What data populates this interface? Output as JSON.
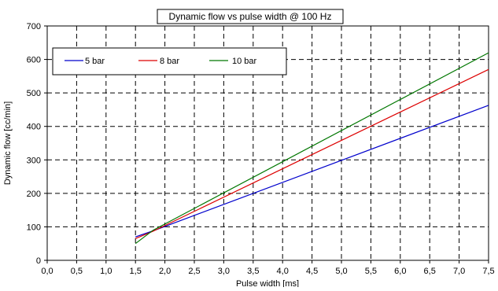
{
  "chart_data": {
    "type": "line",
    "title": "Dynamic flow vs pulse width @ 100 Hz",
    "xlabel": "Pulse width [ms]",
    "ylabel": "Dynamic flow [cc/min]",
    "xlim": [
      0,
      7.5
    ],
    "ylim": [
      0,
      700
    ],
    "xticks": [
      "0,0",
      "0,5",
      "1,0",
      "1,5",
      "2,0",
      "2,5",
      "3,0",
      "3,5",
      "4,0",
      "4,5",
      "5,0",
      "5,5",
      "6,0",
      "6,5",
      "7,0",
      "7,5"
    ],
    "yticks": [
      "0",
      "100",
      "200",
      "300",
      "400",
      "500",
      "600",
      "700"
    ],
    "grid": true,
    "legend_position": "top-left",
    "series": [
      {
        "name": "5 bar",
        "color": "#0000cc",
        "x": [
          1.5,
          1.8,
          7.5
        ],
        "y": [
          70,
          88,
          463
        ]
      },
      {
        "name": "8 bar",
        "color": "#dd0000",
        "x": [
          1.5,
          1.8,
          7.5
        ],
        "y": [
          65,
          87,
          570
        ]
      },
      {
        "name": "10 bar",
        "color": "#007700",
        "x": [
          1.5,
          1.8,
          7.5
        ],
        "y": [
          50,
          90,
          620
        ]
      }
    ]
  }
}
